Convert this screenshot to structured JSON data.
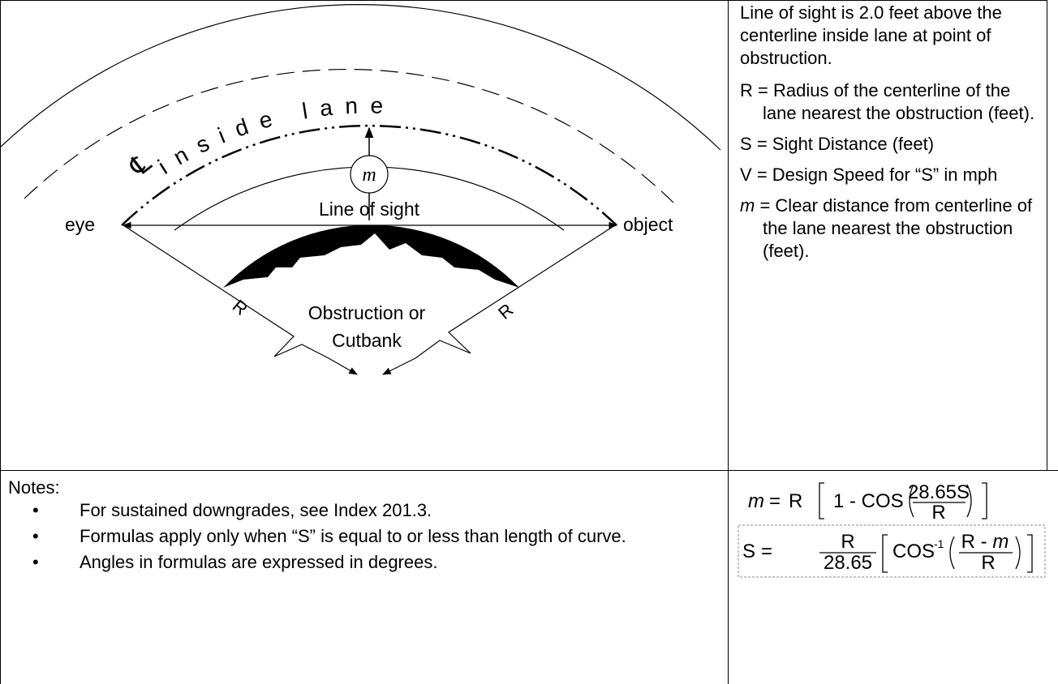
{
  "diagram": {
    "centerline_symbol": "℄",
    "centerline_label": "inside lane",
    "m_label": "m",
    "line_of_sight": "Line of sight",
    "eye": "eye",
    "object": "object",
    "obstruction": [
      "Obstruction or",
      "Cutbank"
    ],
    "radius_labels": [
      "R",
      "R"
    ]
  },
  "definitions": {
    "intro": "Line of sight is 2.0 feet above the centerline inside lane at point of obstruction.",
    "items": [
      {
        "symbol": "R",
        "text": "= Radius of the centerline of the lane nearest the obstruction (feet)."
      },
      {
        "symbol": "S",
        "text": "= Sight Distance (feet)"
      },
      {
        "symbol": "V",
        "text": "= Design Speed for “S” in mph"
      },
      {
        "symbol": "m",
        "text": "= Clear distance from centerline of the lane nearest the obstruction (feet)."
      }
    ]
  },
  "notes": {
    "heading": "Notes:",
    "items": [
      "For sustained downgrades, see Index 201.3.",
      "Formulas apply only when “S” is equal to or less than length of curve.",
      "Angles in formulas are expressed in degrees."
    ]
  },
  "formulas": [
    {
      "lhs": "m",
      "eq": "=",
      "factor": "R",
      "function": "1 - COS",
      "numerator": "28.65S",
      "denominator": "R"
    },
    {
      "lhs": "S",
      "eq": "=",
      "numerator": "R",
      "denominator": "28.65",
      "function": "COS",
      "exponent": "-1",
      "inner_numerator": "R -",
      "inner_variable": "m",
      "inner_denominator": "R"
    }
  ]
}
